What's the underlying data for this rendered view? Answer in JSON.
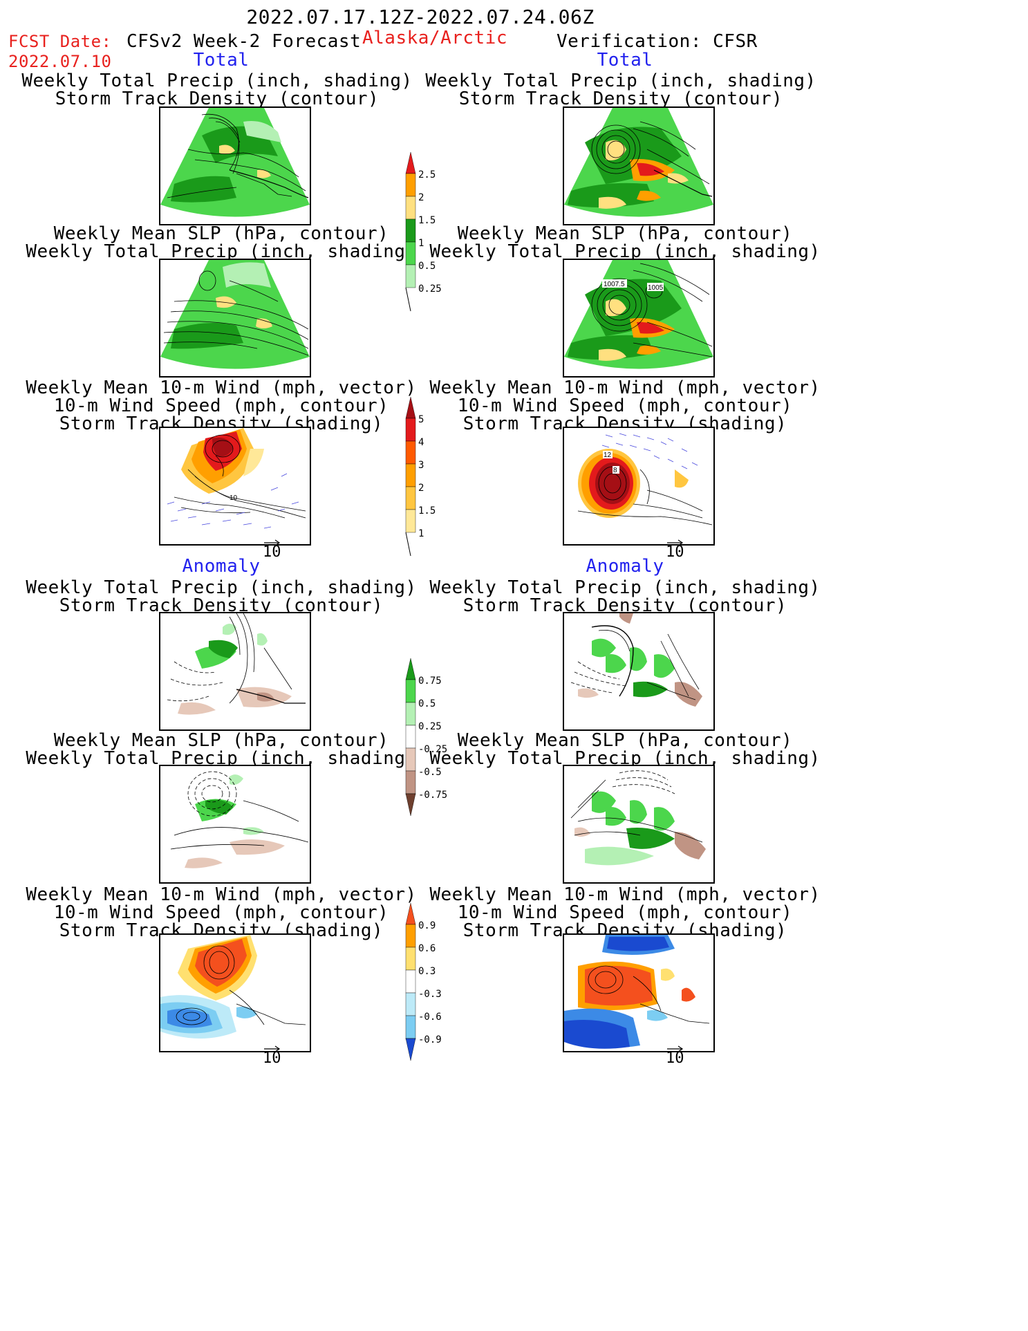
{
  "header": {
    "period": "2022.07.17.12Z-2022.07.24.06Z",
    "fcst_label": "FCST Date:",
    "fcst_date": "2022.07.10",
    "model": "CFSv2 Week-2 Forecast",
    "region": "Alaska/Arctic",
    "verification": "Verification: CFSR"
  },
  "sections": {
    "total_left": "Total",
    "total_right": "Total",
    "anomaly_left": "Anomaly",
    "anomaly_right": "Anomaly"
  },
  "panel_titles": {
    "precip_storm": [
      "Weekly Total Precip (inch, shading)",
      "Storm Track Density (contour)"
    ],
    "slp_precip": [
      "Weekly Mean SLP (hPa, contour)",
      "Weekly Total Precip (inch, shading)"
    ],
    "wind_storm": [
      "Weekly Mean 10-m Wind (mph, vector)",
      "10-m Wind Speed (mph, contour)",
      "Storm Track Density (shading)"
    ]
  },
  "vector_ref_label": "10",
  "contour_labels": {
    "slp_verif": [
      "1007.5",
      "1005"
    ],
    "wind_fcst": [
      "10"
    ],
    "wind_verif": [
      "12",
      "8"
    ]
  },
  "colorbars": {
    "precip_total": {
      "labels": [
        "2.5",
        "2",
        "1.5",
        "1",
        "0.5",
        "0.25"
      ],
      "colors": [
        "#e31a1c",
        "#ff9f00",
        "#ffe080",
        "#1a9a1a",
        "#4cd64c",
        "#b4f0b4"
      ]
    },
    "storm_total": {
      "labels": [
        "5",
        "4",
        "3",
        "2",
        "1.5",
        "1"
      ],
      "colors": [
        "#a50f15",
        "#e31a1c",
        "#ff5a00",
        "#ff9f00",
        "#ffc640",
        "#ffe898",
        "#fffac8"
      ]
    },
    "precip_anom": {
      "labels": [
        "0.75",
        "0.5",
        "0.25",
        "-0.25",
        "-0.5",
        "-0.75"
      ],
      "colors": [
        "#1a9a1a",
        "#4cd64c",
        "#b4f0b4",
        "#ffffff",
        "#e6c8b9",
        "#c09484",
        "#9a6a5a",
        "#6e3f2e"
      ]
    },
    "storm_anom": {
      "labels": [
        "0.9",
        "0.6",
        "0.3",
        "-0.3",
        "-0.6",
        "-0.9"
      ],
      "colors": [
        "#f4501e",
        "#ff9f00",
        "#ffe070",
        "#ffffff",
        "#bdeaf8",
        "#7ccdf2",
        "#3c8ae6",
        "#1a4ad0"
      ]
    }
  }
}
